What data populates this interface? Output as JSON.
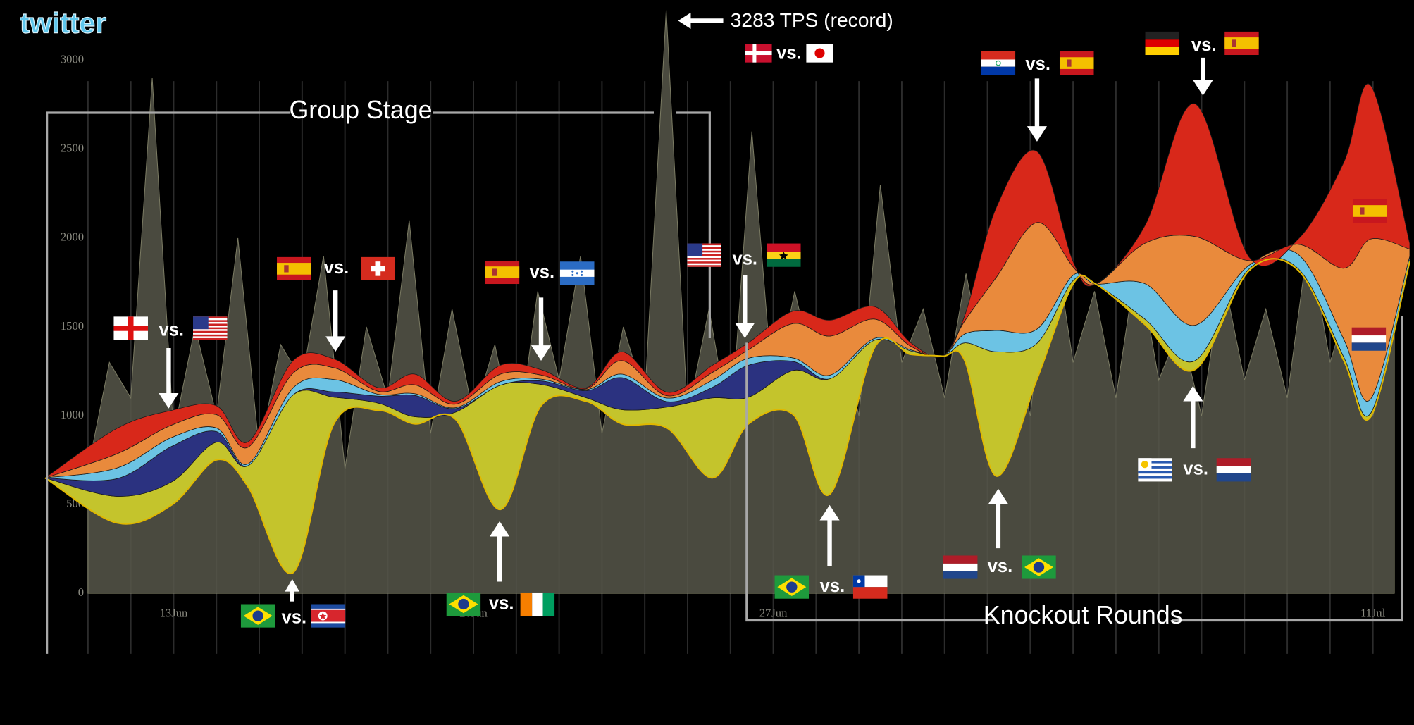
{
  "logo": "twitter",
  "annotations": {
    "record": "3283 TPS (record)",
    "group_stage": "Group Stage",
    "knockout_rounds": "Knockout Rounds",
    "versus": [
      "vs.",
      "vs.",
      "vs.",
      "vs.",
      "vs.",
      "vs.",
      "vs.",
      "vs.",
      "vs.",
      "vs.",
      "vs.",
      "vs."
    ]
  },
  "chart_data": [
    {
      "type": "area",
      "x": [
        11,
        11.5,
        12,
        12.5,
        13,
        13.5,
        14,
        14.5,
        15,
        15.5,
        16,
        16.5,
        17,
        17.5,
        18,
        18.5,
        19,
        19.5,
        20,
        20.5,
        21,
        21.5,
        22,
        22.5,
        23,
        23.5,
        24,
        24.5,
        25,
        25.5,
        26,
        26.5,
        27,
        27.5,
        28,
        28.5,
        29,
        29.5,
        30,
        30.5,
        31,
        31.5,
        32,
        32.5,
        33,
        33.5,
        34,
        34.5,
        35,
        35.5,
        36,
        36.5,
        37,
        37.5,
        38,
        38.5,
        39,
        39.5,
        40,
        40.5,
        41,
        41.5
      ],
      "values": [
        700,
        1300,
        1100,
        2900,
        900,
        1500,
        1000,
        2000,
        800,
        1400,
        1200,
        1900,
        700,
        1500,
        1100,
        2100,
        900,
        1600,
        1000,
        1400,
        800,
        1700,
        1200,
        1900,
        900,
        1500,
        1100,
        3283,
        1000,
        1600,
        900,
        2600,
        1100,
        1700,
        1200,
        1500,
        1000,
        2300,
        1300,
        1600,
        1100,
        1800,
        1200,
        1500,
        1000,
        2100,
        1300,
        1700,
        1100,
        1900,
        1200,
        1500,
        1000,
        1800,
        1200,
        1600,
        1100,
        2000,
        1300,
        1700,
        1000,
        1500
      ],
      "color": "#57574a",
      "xlim": [
        10,
        42
      ],
      "ylim": [
        0,
        3000
      ],
      "yticks": [
        0,
        500,
        1000,
        1500,
        2000,
        2500,
        3000
      ],
      "xticks": [
        {
          "value": 13,
          "label": "13Jun"
        },
        {
          "value": 20,
          "label": "20Jun"
        },
        {
          "value": 27,
          "label": "27Jun"
        },
        {
          "value": 41,
          "label": "11Jul"
        }
      ],
      "xminorticks": [
        11,
        12,
        14,
        15,
        16,
        17,
        18,
        19,
        21,
        22,
        23,
        24,
        25,
        26,
        28,
        29,
        30,
        31,
        32,
        33,
        34,
        35,
        36,
        37,
        38,
        39,
        40
      ],
      "grid": true
    },
    {
      "type": "streamgraph",
      "x": [
        10,
        11.68,
        12.95,
        14,
        14.74,
        15.79,
        16.74,
        17.79,
        18.63,
        19.58,
        20.63,
        21.58,
        22.63,
        23.47,
        24.53,
        25.58,
        26.42,
        27.47,
        28.32,
        29.37,
        30.21,
        30.95,
        31.47,
        32.21,
        33.16,
        34,
        34.53,
        35.68,
        36.84,
        38.11,
        39.26,
        40.32,
        40.95,
        41.86
      ],
      "baseline": [
        650,
        396,
        497,
        751,
        599,
        117,
        954,
        1030,
        954,
        980,
        472,
        1056,
        1081,
        954,
        929,
        650,
        954,
        1005,
        558,
        1386,
        1345,
        1335,
        1310,
        660,
        1208,
        1741,
        1741,
        1513,
        1259,
        1817,
        1817,
        1310,
        995,
        1868
      ],
      "baseline_color": "#e0b800",
      "xlim": [
        10,
        42
      ],
      "ylim": [
        0,
        3000
      ],
      "series": [
        {
          "color": "#c4c42c",
          "values": [
            0,
            150,
            130,
            100,
            120,
            1000,
            150,
            40,
            40,
            40,
            700,
            120,
            20,
            80,
            120,
            450,
            150,
            250,
            650,
            40,
            20,
            0,
            100,
            700,
            200,
            20,
            0,
            30,
            50,
            10,
            10,
            20,
            20,
            10
          ]
        },
        {
          "color": "#2b3280",
          "values": [
            0,
            100,
            200,
            60,
            0,
            0,
            30,
            40,
            120,
            20,
            0,
            20,
            40,
            180,
            30,
            60,
            180,
            50,
            0,
            0,
            0,
            0,
            0,
            0,
            0,
            0,
            0,
            0,
            0,
            0,
            0,
            0,
            0,
            0
          ]
        },
        {
          "color": "#6cc3e4",
          "values": [
            0,
            60,
            50,
            20,
            10,
            40,
            70,
            10,
            10,
            5,
            20,
            10,
            6,
            20,
            20,
            40,
            40,
            20,
            20,
            10,
            6,
            0,
            50,
            120,
            80,
            30,
            0,
            200,
            200,
            20,
            80,
            100,
            80,
            20
          ]
        },
        {
          "color": "#e98a3c",
          "values": [
            0,
            80,
            70,
            75,
            94,
            83,
            66,
            17,
            50,
            20,
            42,
            23,
            5,
            76,
            13,
            44,
            47,
            194,
            220,
            108,
            20,
            0,
            74,
            300,
            600,
            47,
            0,
            228,
            500,
            26,
            58,
            400,
            900,
            40
          ]
        },
        {
          "color": "#d8281a",
          "values": [
            0,
            143,
            83,
            50,
            30,
            70,
            50,
            20,
            60,
            16,
            50,
            30,
            5,
            50,
            20,
            40,
            40,
            70,
            90,
            70,
            20,
            0,
            30,
            393,
            399,
            30,
            0,
            100,
            747,
            20,
            30,
            596,
            863,
            32
          ]
        }
      ]
    }
  ]
}
